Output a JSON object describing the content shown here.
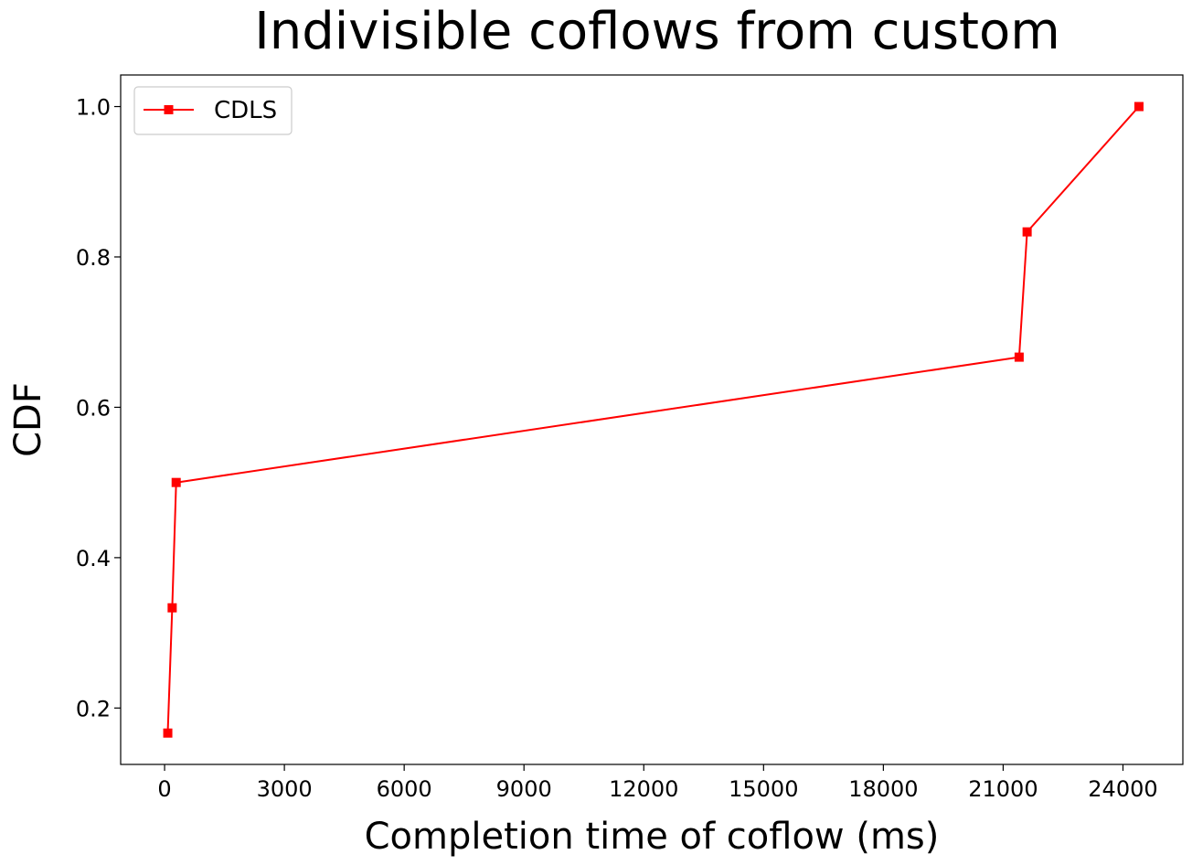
{
  "chart_data": {
    "type": "line",
    "title": "Indivisible coflows from custom",
    "xlabel": "Completion time of coflow (ms)",
    "ylabel": "CDF",
    "xlim": [
      -1100,
      25500
    ],
    "ylim": [
      0.125,
      1.042
    ],
    "xticks": [
      0,
      3000,
      6000,
      9000,
      12000,
      15000,
      18000,
      21000,
      24000
    ],
    "yticks": [
      0.2,
      0.4,
      0.6,
      0.8,
      1.0
    ],
    "ytick_labels": [
      "0.2",
      "0.4",
      "0.6",
      "0.8",
      "1.0"
    ],
    "grid": false,
    "legend_position": "top-left",
    "series": [
      {
        "name": "CDLS",
        "color": "#ff0000",
        "marker": "square",
        "x": [
          80,
          190,
          290,
          21400,
          21600,
          24400
        ],
        "y": [
          0.1667,
          0.3333,
          0.5,
          0.6667,
          0.8333,
          1.0
        ]
      }
    ]
  }
}
